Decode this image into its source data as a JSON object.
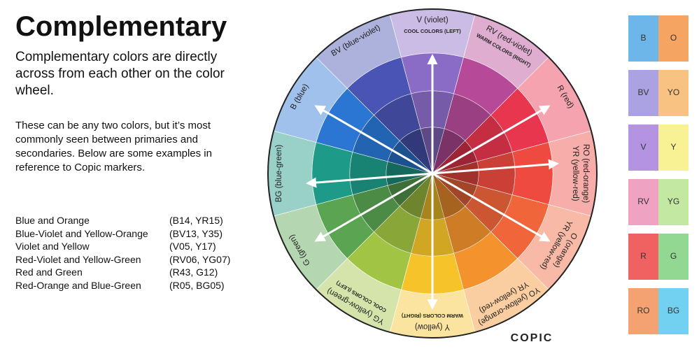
{
  "title": "Complementary",
  "intro": "Complementary colors are directly across from each other on the color wheel.",
  "body": "These can be any two colors, but it’s most commonly seen between primaries and secondaries. Below are some examples in reference to Copic markers.",
  "pairs": [
    {
      "name": "Blue and Orange",
      "codes": "(B14, YR15)"
    },
    {
      "name": "Blue-Violet and Yellow-Orange",
      "codes": "(BV13, Y35)"
    },
    {
      "name": "Violet and Yellow",
      "codes": "(V05, Y17)"
    },
    {
      "name": "Red-Violet and Yellow-Green",
      "codes": "(RV06, YG07)"
    },
    {
      "name": "Red and Green",
      "codes": "(R43, G12)"
    },
    {
      "name": "Red-Orange and Blue-Green",
      "codes": "(R05, BG05)"
    }
  ],
  "wheel": {
    "segments": [
      {
        "lines": [
          "V (violet)"
        ],
        "note": "COOL COLORS (LEFT)",
        "color": "#8a6cc6"
      },
      {
        "lines": [
          "RV (red-violet)"
        ],
        "note": "WARM COLORS (RIGHT)",
        "color": "#b64a98"
      },
      {
        "lines": [
          "R (red)"
        ],
        "color": "#e8364e"
      },
      {
        "lines": [
          "RO (red-orange)",
          "YR (yellow-red)"
        ],
        "color": "#ee4a40"
      },
      {
        "lines": [
          "O (orange)",
          "YR (yellow-red)"
        ],
        "color": "#f0663a"
      },
      {
        "lines": [
          "YO (yellow-orange)",
          "YR (yellow-red)"
        ],
        "color": "#f4922e"
      },
      {
        "lines": [
          "Y (yellow)"
        ],
        "note": "WARM COLORS (RIGHT)",
        "color": "#f6c42a"
      },
      {
        "lines": [
          "YG (yellow-green)"
        ],
        "note": "COOL COLORS (LEFT)",
        "color": "#a2c444"
      },
      {
        "lines": [
          "G (green)"
        ],
        "color": "#5aa452"
      },
      {
        "lines": [
          "BG (blue-green)"
        ],
        "color": "#1e9a88"
      },
      {
        "lines": [
          "B (blue)"
        ],
        "color": "#2a76d2"
      },
      {
        "lines": [
          "BV (blue-violet)"
        ],
        "color": "#4a54b4"
      }
    ]
  },
  "logo": "COPIC",
  "swatches": [
    [
      {
        "label": "B",
        "color": "#6cb6ea"
      },
      {
        "label": "O",
        "color": "#f5a462"
      }
    ],
    [
      {
        "label": "BV",
        "color": "#aaa2e2"
      },
      {
        "label": "YO",
        "color": "#f8c282"
      }
    ],
    [
      {
        "label": "V",
        "color": "#b494e2"
      },
      {
        "label": "Y",
        "color": "#f8f294"
      }
    ],
    [
      {
        "label": "RV",
        "color": "#f0a2c2"
      },
      {
        "label": "YG",
        "color": "#c2e8a2"
      }
    ],
    [
      {
        "label": "R",
        "color": "#f06262"
      },
      {
        "label": "G",
        "color": "#92d892"
      }
    ],
    [
      {
        "label": "RO",
        "color": "#f5a272"
      },
      {
        "label": "BG",
        "color": "#72d0f0"
      }
    ]
  ]
}
